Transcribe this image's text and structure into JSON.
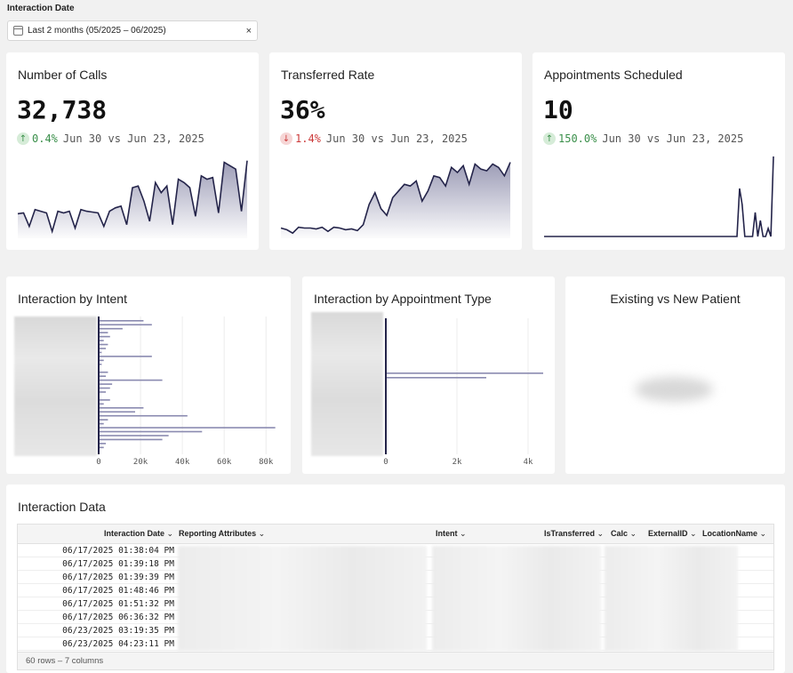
{
  "filter": {
    "label": "Interaction Date",
    "value": "Last 2 months (05/2025 – 06/2025)",
    "clear": "×"
  },
  "kpis": [
    {
      "title": "Number of Calls",
      "value": "32,738",
      "direction": "up",
      "arrow": "↑",
      "pct": "0.4%",
      "compare": "Jun 30 vs Jun 23, 2025"
    },
    {
      "title": "Transferred Rate",
      "value": "36%",
      "direction": "down",
      "arrow": "↓",
      "pct": "1.4%",
      "compare": "Jun 30 vs Jun 23, 2025"
    },
    {
      "title": "Appointments Scheduled",
      "value": "10",
      "direction": "up",
      "arrow": "↑",
      "pct": "150.0%",
      "compare": "Jun 30 vs Jun 23, 2025"
    }
  ],
  "charts": {
    "intent": {
      "title": "Interaction by Intent"
    },
    "appointment": {
      "title": "Interaction by Appointment Type"
    },
    "patient": {
      "title": "Existing vs New Patient"
    }
  },
  "chart_data": [
    {
      "type": "area",
      "name": "Number of Calls sparkline",
      "values": [
        27,
        28,
        12,
        32,
        30,
        28,
        6,
        30,
        28,
        30,
        10,
        32,
        30,
        29,
        28,
        12,
        30,
        34,
        36,
        14,
        58,
        60,
        42,
        18,
        64,
        52,
        60,
        14,
        68,
        64,
        58,
        24,
        72,
        68,
        70,
        28,
        88,
        84,
        80,
        30,
        90
      ]
    },
    {
      "type": "area",
      "name": "Transferred Rate sparkline",
      "values": [
        10,
        8,
        4,
        11,
        10,
        10,
        9,
        11,
        6,
        11,
        10,
        8,
        9,
        7,
        14,
        38,
        52,
        33,
        25,
        46,
        54,
        62,
        60,
        66,
        42,
        54,
        72,
        70,
        60,
        82,
        76,
        84,
        62,
        86,
        80,
        78,
        86,
        82,
        72,
        88
      ]
    },
    {
      "type": "line",
      "name": "Appointments Scheduled sparkline",
      "values": [
        0,
        0,
        0,
        0,
        0,
        0,
        0,
        0,
        0,
        0,
        0,
        0,
        0,
        0,
        0,
        0,
        0,
        0,
        0,
        0,
        0,
        0,
        0,
        0,
        0,
        0,
        0,
        0,
        0,
        0,
        0,
        0,
        0,
        0,
        0,
        0,
        0,
        0,
        0,
        0,
        0,
        0,
        0,
        0,
        0,
        0,
        0,
        0,
        0,
        0,
        0,
        0,
        0,
        0,
        0,
        0,
        0,
        0,
        0,
        0,
        0,
        0,
        0,
        0,
        0,
        0,
        0,
        0,
        0,
        0,
        0,
        0,
        0,
        0,
        0,
        6,
        4,
        0,
        0,
        0,
        0,
        3,
        0,
        2,
        0,
        0,
        1,
        0,
        10
      ]
    },
    {
      "type": "bar",
      "orientation": "horizontal",
      "name": "Interaction by Intent",
      "xticks": [
        "0",
        "20k",
        "40k",
        "60k",
        "80k"
      ],
      "xlim": [
        0,
        85000
      ],
      "values": [
        21000,
        25000,
        11000,
        4000,
        5000,
        2000,
        4000,
        3000,
        1000,
        25000,
        2000,
        1000,
        0,
        4000,
        3000,
        30000,
        6000,
        5000,
        3000,
        0,
        5000,
        2000,
        21000,
        17000,
        42000,
        4000,
        2000,
        84000,
        49000,
        33000,
        30000,
        3000,
        2000
      ]
    },
    {
      "type": "bar",
      "orientation": "horizontal",
      "name": "Interaction by Appointment Type",
      "xticks": [
        "0",
        "2k",
        "4k"
      ],
      "xlim": [
        0,
        4400
      ],
      "values": [
        4400,
        2800
      ]
    },
    {
      "type": "pie",
      "name": "Existing vs New Patient",
      "values": []
    }
  ],
  "table": {
    "title": "Interaction Data",
    "columns": [
      "Interaction Date",
      "Reporting Attributes",
      "Intent",
      "IsTransferred",
      "Calc",
      "ExternalID",
      "LocationName"
    ],
    "rows": [
      "06/17/2025 01:38:04 PM",
      "06/17/2025 01:39:18 PM",
      "06/17/2025 01:39:39 PM",
      "06/17/2025 01:48:46 PM",
      "06/17/2025 01:51:32 PM",
      "06/17/2025 06:36:32 PM",
      "06/23/2025 03:19:35 PM",
      "06/23/2025 04:23:11 PM"
    ],
    "footer": "60 rows – 7 columns"
  }
}
